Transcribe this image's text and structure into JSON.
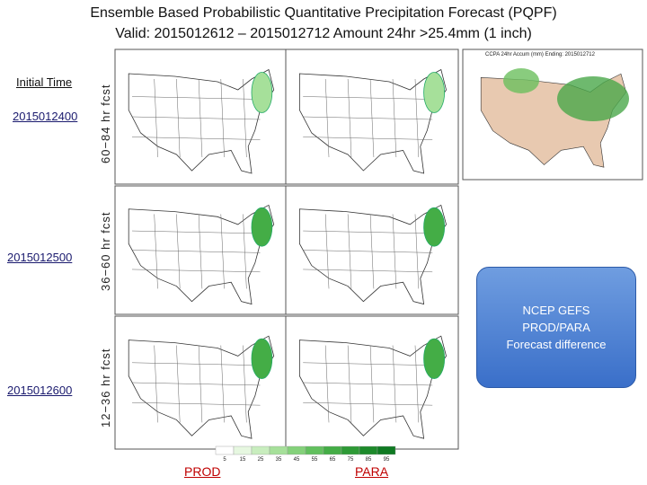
{
  "title_lines": [
    "Ensemble Based Probabilistic Quantitative Precipitation Forecast (PQPF)",
    "Valid: 2015012612 – 2015012712 Amount 24hr >25.4mm (1 inch)"
  ],
  "initial_time_label": "Initial Time",
  "rows": [
    {
      "date": "2015012400",
      "lead": "60−84 hr fcst"
    },
    {
      "date": "2015012500",
      "lead": "36−60 hr fcst"
    },
    {
      "date": "2015012600",
      "lead": "12−36 hr fcst"
    }
  ],
  "observed_header": "CCPA 24hr Accum (mm) Ending: 2015012712",
  "note": "NCEP GEFS PROD/PARA Forecast difference",
  "columns": [
    "PROD",
    "PARA"
  ],
  "colorbar": {
    "ticks": [
      5,
      15,
      25,
      35,
      45,
      55,
      65,
      75,
      85,
      95
    ],
    "colors": [
      "#ffffff",
      "#e6f7e0",
      "#c8edbe",
      "#a6e09a",
      "#84d17a",
      "#62c05e",
      "#44ad46",
      "#2e9a36",
      "#1d8a2b",
      "#0f7a22"
    ]
  }
}
